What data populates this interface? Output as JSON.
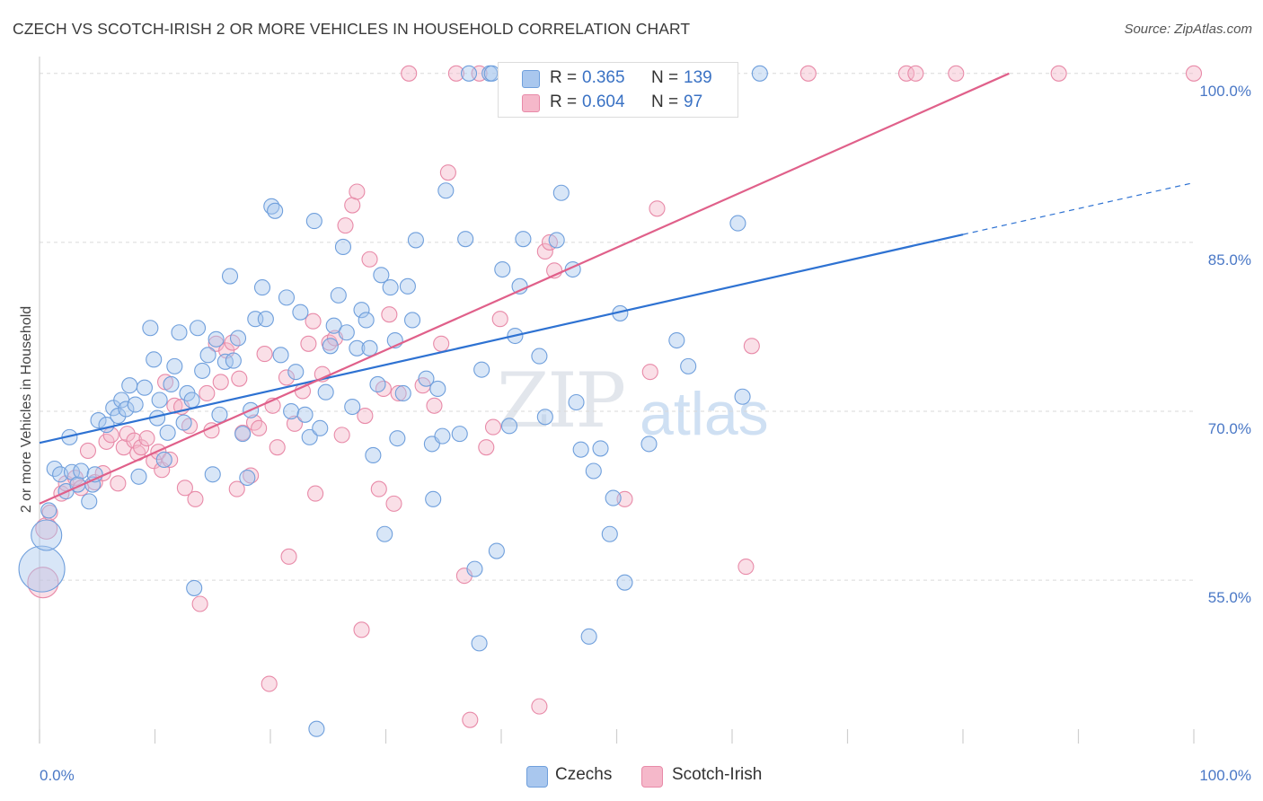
{
  "title": "CZECH VS SCOTCH-IRISH 2 OR MORE VEHICLES IN HOUSEHOLD CORRELATION CHART",
  "source": "Source: ZipAtlas.com",
  "watermark": {
    "zip": "ZIP",
    "atlas": "atlas"
  },
  "legend": {
    "r_label": "R =",
    "n_label": "N =",
    "czechs": {
      "r": "0.365",
      "n": "139"
    },
    "scotch_irish": {
      "r": "0.604",
      "n": "97"
    }
  },
  "colors": {
    "czechs_fill": "#a9c7ee",
    "czechs_stroke": "#6f9fdc",
    "czechs_line": "#2e72d2",
    "scotch_fill": "#f5b8ca",
    "scotch_stroke": "#e88aa8",
    "scotch_line": "#e0608a",
    "axis_text": "#4a78c6",
    "grid": "#d9d9d9"
  },
  "chart_data": {
    "type": "scatter",
    "title": "CZECH VS SCOTCH-IRISH 2 OR MORE VEHICLES IN HOUSEHOLD CORRELATION CHART",
    "xlabel": "",
    "ylabel": "2 or more Vehicles in Household",
    "xlim": [
      0,
      100
    ],
    "ylim": [
      40.5,
      101.5
    ],
    "x_tick_labels": [
      "0.0%",
      "100.0%"
    ],
    "y_ticks": [
      55,
      70,
      85,
      100
    ],
    "y_tick_labels": [
      "55.0%",
      "70.0%",
      "85.0%",
      "100.0%"
    ],
    "grid": "horizontal dashed",
    "legend_position": "top-center",
    "series": [
      {
        "name": "Czechs",
        "r": 0.365,
        "n": 139,
        "trend": {
          "x0": 0,
          "y0": 67.2,
          "x1": 80,
          "y1": 85.7,
          "dashed_to_x": 100,
          "dashed_to_y": 90.3
        },
        "points": [
          [
            0.2,
            56,
            3
          ],
          [
            0.6,
            59,
            2
          ],
          [
            0.8,
            61.2,
            1
          ],
          [
            1.3,
            64.9,
            1
          ],
          [
            1.8,
            64.4,
            1
          ],
          [
            2.3,
            62.9,
            1
          ],
          [
            2.6,
            67.7,
            1
          ],
          [
            2.8,
            64.6,
            1
          ],
          [
            3.3,
            63.5,
            1
          ],
          [
            3.6,
            64.7,
            1
          ],
          [
            4.3,
            62,
            1
          ],
          [
            4.6,
            63.5,
            1
          ],
          [
            4.8,
            64.4,
            1
          ],
          [
            5.1,
            69.2,
            1
          ],
          [
            5.8,
            68.8,
            1
          ],
          [
            6.4,
            70.3,
            1
          ],
          [
            6.8,
            69.6,
            1
          ],
          [
            7.1,
            71,
            1
          ],
          [
            7.5,
            70.2,
            1
          ],
          [
            7.8,
            72.3,
            1
          ],
          [
            8.3,
            70.6,
            1
          ],
          [
            8.6,
            64.2,
            1
          ],
          [
            9.1,
            72.1,
            1
          ],
          [
            9.6,
            77.4,
            1
          ],
          [
            9.9,
            74.6,
            1
          ],
          [
            10.2,
            69.4,
            1
          ],
          [
            10.4,
            71,
            1
          ],
          [
            10.8,
            65.7,
            1
          ],
          [
            11.1,
            68.1,
            1
          ],
          [
            11.4,
            72.4,
            1
          ],
          [
            11.7,
            74,
            1
          ],
          [
            12.1,
            77,
            1
          ],
          [
            12.5,
            69,
            1
          ],
          [
            12.8,
            71.6,
            1
          ],
          [
            13.2,
            71,
            1
          ],
          [
            13.4,
            54.3,
            1
          ],
          [
            13.7,
            77.4,
            1
          ],
          [
            14.1,
            73.6,
            1
          ],
          [
            14.6,
            75,
            1
          ],
          [
            15,
            64.4,
            1
          ],
          [
            15.3,
            76.4,
            1
          ],
          [
            15.6,
            69.7,
            1
          ],
          [
            16.1,
            74.4,
            1
          ],
          [
            16.5,
            82,
            1
          ],
          [
            16.8,
            74.5,
            1
          ],
          [
            17.2,
            76.5,
            1
          ],
          [
            17.6,
            68,
            1
          ],
          [
            18,
            64.1,
            1
          ],
          [
            18.3,
            70.1,
            1
          ],
          [
            18.7,
            78.2,
            1
          ],
          [
            19.3,
            81,
            1
          ],
          [
            19.6,
            78.2,
            1
          ],
          [
            20.1,
            88.2,
            1
          ],
          [
            20.4,
            87.8,
            1
          ],
          [
            20.9,
            75,
            1
          ],
          [
            21.4,
            80.1,
            1
          ],
          [
            21.8,
            70,
            1
          ],
          [
            22.2,
            73.5,
            1
          ],
          [
            22.6,
            78.8,
            1
          ],
          [
            23,
            69.7,
            1
          ],
          [
            23.4,
            67.7,
            1
          ],
          [
            23.8,
            86.9,
            1
          ],
          [
            24,
            41.8,
            1
          ],
          [
            24.3,
            68.5,
            1
          ],
          [
            24.8,
            71.7,
            1
          ],
          [
            25.2,
            75.8,
            1
          ],
          [
            25.5,
            77.6,
            1
          ],
          [
            25.9,
            80.3,
            1
          ],
          [
            26.3,
            84.6,
            1
          ],
          [
            26.6,
            77,
            1
          ],
          [
            27.1,
            70.4,
            1
          ],
          [
            27.5,
            75.6,
            1
          ],
          [
            27.9,
            79,
            1
          ],
          [
            28.3,
            78.1,
            1
          ],
          [
            28.6,
            75.6,
            1
          ],
          [
            28.9,
            66.1,
            1
          ],
          [
            29.3,
            72.4,
            1
          ],
          [
            29.6,
            82.1,
            1
          ],
          [
            29.9,
            59.1,
            1
          ],
          [
            30.4,
            81,
            1
          ],
          [
            30.8,
            76.3,
            1
          ],
          [
            31,
            67.6,
            1
          ],
          [
            31.5,
            71.6,
            1
          ],
          [
            31.9,
            81.1,
            1
          ],
          [
            32.3,
            78.1,
            1
          ],
          [
            32.6,
            85.2,
            1
          ],
          [
            33.5,
            72.9,
            1
          ],
          [
            34,
            67.1,
            1
          ],
          [
            34.1,
            62.2,
            1
          ],
          [
            34.5,
            72,
            1
          ],
          [
            34.9,
            67.8,
            1
          ],
          [
            35.2,
            89.6,
            1
          ],
          [
            36.4,
            68,
            1
          ],
          [
            36.9,
            85.3,
            1
          ],
          [
            37.2,
            100,
            1
          ],
          [
            37.7,
            56,
            1
          ],
          [
            38.1,
            49.4,
            1
          ],
          [
            38.3,
            73.7,
            1
          ],
          [
            39,
            100,
            1
          ],
          [
            39.2,
            100,
            1
          ],
          [
            39.6,
            57.6,
            1
          ],
          [
            40.1,
            82.6,
            1
          ],
          [
            40.7,
            68.7,
            1
          ],
          [
            41.2,
            76.7,
            1
          ],
          [
            41.6,
            81.1,
            1
          ],
          [
            41.9,
            85.3,
            1
          ],
          [
            42.5,
            100,
            1
          ],
          [
            43.3,
            74.9,
            1
          ],
          [
            43.8,
            69.5,
            1
          ],
          [
            44.6,
            100,
            1
          ],
          [
            44.8,
            85.2,
            1
          ],
          [
            45.2,
            89.4,
            1
          ],
          [
            45.8,
            100,
            1
          ],
          [
            46.2,
            82.6,
            1
          ],
          [
            46.5,
            70.8,
            1
          ],
          [
            46.9,
            66.6,
            1
          ],
          [
            47.6,
            50,
            1
          ],
          [
            48,
            64.7,
            1
          ],
          [
            48.6,
            66.7,
            1
          ],
          [
            48.9,
            100,
            1
          ],
          [
            49.4,
            59.1,
            1
          ],
          [
            49.7,
            62.3,
            1
          ],
          [
            50.3,
            78.7,
            1
          ],
          [
            50.7,
            54.8,
            1
          ],
          [
            52.8,
            67.1,
            1
          ],
          [
            55.2,
            76.3,
            1
          ],
          [
            56.2,
            74,
            1
          ],
          [
            60.5,
            86.7,
            1
          ],
          [
            60.9,
            71.3,
            1
          ],
          [
            62.4,
            100,
            1
          ]
        ]
      },
      {
        "name": "Scotch-Irish",
        "r": 0.604,
        "n": 97,
        "trend": {
          "x0": 0,
          "y0": 61.8,
          "x1": 84,
          "y1": 100
        },
        "points": [
          [
            0.3,
            54.8,
            2
          ],
          [
            0.6,
            59.6,
            1.4
          ],
          [
            0.9,
            61,
            1
          ],
          [
            1.9,
            62.7,
            1
          ],
          [
            2.3,
            63.6,
            1
          ],
          [
            3.1,
            64.1,
            1
          ],
          [
            3.6,
            63.2,
            1
          ],
          [
            4.2,
            66.5,
            1
          ],
          [
            4.8,
            63.7,
            1
          ],
          [
            5.5,
            64.5,
            1
          ],
          [
            5.8,
            67.3,
            1
          ],
          [
            6.2,
            67.9,
            1
          ],
          [
            6.8,
            63.6,
            1
          ],
          [
            7.3,
            66.8,
            1
          ],
          [
            7.6,
            68,
            1
          ],
          [
            8.2,
            67.4,
            1
          ],
          [
            8.5,
            66.3,
            1
          ],
          [
            8.8,
            66.8,
            1
          ],
          [
            9.3,
            67.6,
            1
          ],
          [
            9.9,
            65.6,
            1
          ],
          [
            10.3,
            66.4,
            1
          ],
          [
            10.6,
            64.8,
            1
          ],
          [
            10.9,
            72.6,
            1
          ],
          [
            11.3,
            65.7,
            1
          ],
          [
            11.7,
            70.5,
            1
          ],
          [
            12.3,
            70.4,
            1
          ],
          [
            12.6,
            63.2,
            1
          ],
          [
            13,
            68.7,
            1
          ],
          [
            13.5,
            62.2,
            1
          ],
          [
            13.9,
            52.9,
            1
          ],
          [
            14.5,
            71.6,
            1
          ],
          [
            14.9,
            68.3,
            1
          ],
          [
            15.3,
            76,
            1
          ],
          [
            15.7,
            72.6,
            1
          ],
          [
            16.2,
            75.4,
            1
          ],
          [
            16.7,
            76.1,
            1
          ],
          [
            17.1,
            63.1,
            1
          ],
          [
            17.3,
            72.9,
            1
          ],
          [
            17.6,
            68.1,
            1
          ],
          [
            18.3,
            64.3,
            1
          ],
          [
            18.6,
            69,
            1
          ],
          [
            19,
            68.5,
            1
          ],
          [
            19.5,
            75.1,
            1
          ],
          [
            19.9,
            45.8,
            1
          ],
          [
            20.2,
            70.5,
            1
          ],
          [
            20.6,
            66.8,
            1
          ],
          [
            21.4,
            73,
            1
          ],
          [
            21.6,
            57.1,
            1
          ],
          [
            22.1,
            68.9,
            1
          ],
          [
            22.8,
            71.8,
            1
          ],
          [
            23.3,
            76,
            1
          ],
          [
            23.7,
            78,
            1
          ],
          [
            23.9,
            62.7,
            1
          ],
          [
            24.5,
            73.3,
            1
          ],
          [
            25.1,
            76.1,
            1
          ],
          [
            25.6,
            76.5,
            1
          ],
          [
            26.2,
            67.9,
            1
          ],
          [
            26.5,
            86.5,
            1
          ],
          [
            27.1,
            88.3,
            1
          ],
          [
            27.5,
            89.5,
            1
          ],
          [
            27.9,
            50.6,
            1
          ],
          [
            28.2,
            69.6,
            1
          ],
          [
            28.6,
            83.5,
            1
          ],
          [
            29.4,
            63.1,
            1
          ],
          [
            29.8,
            72,
            1
          ],
          [
            30.3,
            78.6,
            1
          ],
          [
            30.7,
            61.8,
            1
          ],
          [
            31.1,
            71.6,
            1
          ],
          [
            32,
            100,
            1
          ],
          [
            33.2,
            72.3,
            1
          ],
          [
            34.2,
            70.5,
            1
          ],
          [
            34.8,
            76,
            1
          ],
          [
            35.4,
            91.2,
            1
          ],
          [
            36.1,
            100,
            1
          ],
          [
            36.8,
            55.4,
            1
          ],
          [
            37.3,
            42.6,
            1
          ],
          [
            38.1,
            100,
            1
          ],
          [
            38.7,
            66.8,
            1
          ],
          [
            39.3,
            68.6,
            1
          ],
          [
            39.9,
            78.2,
            1
          ],
          [
            40.7,
            100,
            1
          ],
          [
            42.8,
            100,
            1
          ],
          [
            43.3,
            43.8,
            1
          ],
          [
            43.8,
            84.2,
            1
          ],
          [
            44.2,
            85,
            1
          ],
          [
            44.6,
            82.5,
            1
          ],
          [
            45.3,
            100,
            1
          ],
          [
            47.6,
            100,
            1
          ],
          [
            50.5,
            100,
            1
          ],
          [
            50.7,
            62.2,
            1
          ],
          [
            52.9,
            73.5,
            1
          ],
          [
            53.5,
            88,
            1
          ],
          [
            61.2,
            56.2,
            1
          ],
          [
            61.7,
            75.8,
            1
          ],
          [
            66.6,
            100,
            1
          ],
          [
            75.1,
            100,
            1
          ],
          [
            75.9,
            100,
            1
          ],
          [
            79.4,
            100,
            1
          ],
          [
            88.3,
            100,
            1
          ],
          [
            100,
            100,
            1
          ]
        ]
      }
    ]
  },
  "bottom_legend": {
    "czechs": "Czechs",
    "scotch_irish": "Scotch-Irish"
  }
}
